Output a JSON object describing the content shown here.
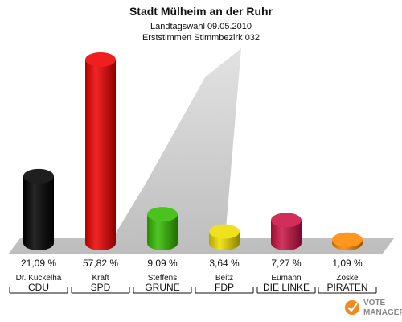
{
  "chart_data": {
    "type": "bar",
    "title": "Stadt Mülheim an der Ruhr",
    "subtitle_1": "Landtagswahl 09.05.2010",
    "subtitle_2": "Erststimmen Stimmbezirk 032",
    "categories": [
      "CDU",
      "SPD",
      "GRÜNE",
      "FDP",
      "DIE LINKE",
      "PIRATEN"
    ],
    "candidates": [
      "Dr. Kückelha",
      "Kraft",
      "Steffens",
      "Beitz",
      "Eumann",
      "Zoske"
    ],
    "values": [
      21.09,
      57.82,
      9.09,
      3.64,
      7.27,
      1.09
    ],
    "value_labels": [
      "21,09 %",
      "57,82 %",
      "9,09 %",
      "3,64 %",
      "7,27 %",
      "1,09 %"
    ],
    "colors": [
      "#000000",
      "#ee0000",
      "#33bb00",
      "#eedd00",
      "#cc1144",
      "#ff8800"
    ],
    "ylim": [
      0,
      60
    ],
    "grid": false,
    "legend": "none"
  },
  "logo": {
    "text_1": "VOTE",
    "text_2": "MANAGER"
  }
}
